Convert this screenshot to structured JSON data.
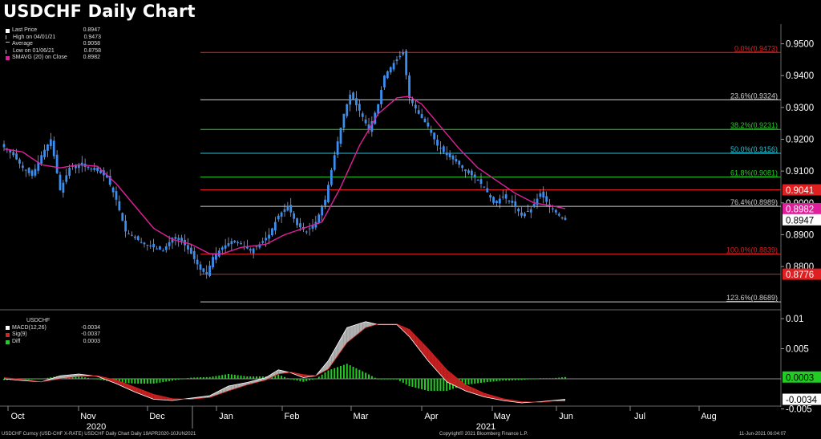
{
  "title": "USDCHF Daily Chart",
  "legend_top": {
    "rows": [
      {
        "label": "Last Price",
        "value": "0.8947",
        "color": "#ffffff",
        "marker": "box"
      },
      {
        "label": "High on 04/01/21",
        "value": "0.9473",
        "color": "#bbbbbb",
        "marker": "tick"
      },
      {
        "label": "Average",
        "value": "0.9058",
        "color": "#bbbbbb",
        "marker": "dash"
      },
      {
        "label": "Low on 01/06/21",
        "value": "0.8758",
        "color": "#bbbbbb",
        "marker": "tick"
      },
      {
        "label": "SMAVG (20)  on Close",
        "value": "0.8982",
        "color": "#e0209a",
        "marker": "box"
      }
    ]
  },
  "legend_bottom": {
    "header": "USDCHF",
    "rows": [
      {
        "label": "MACD(12,26)",
        "value": "-0.0034",
        "color": "#ffffff"
      },
      {
        "label": "Sig(9)",
        "value": "-0.0037",
        "color": "#e02020"
      },
      {
        "label": "Diff",
        "value": "0.0003",
        "color": "#22cc22"
      }
    ]
  },
  "footer": {
    "left": "USDCHF Curncy (USD-CHF X-RATE) USDCHF Daily Chart  Daily 19APR2020-10JUN2021",
    "center": "Copyright© 2021 Bloomberg Finance L.P.",
    "right": "11-Jun-2021 06:04:07"
  },
  "colors": {
    "candle": "#3a8ef0",
    "sma": "#e0209a",
    "fib_red": "#e02020",
    "fib_white": "#cccccc",
    "fib_green": "#22cc22",
    "fib_cyan": "#22c4d8",
    "diff": "#22cc22",
    "macd_fill": "#b0b0b0",
    "sig_fill": "#c02020"
  },
  "chart_data": {
    "type": "candlestick",
    "title": "USDCHF Daily Chart",
    "x_axis": {
      "months": [
        "Oct",
        "Nov",
        "Dec",
        "Jan",
        "Feb",
        "Mar",
        "Apr",
        "May",
        "Jun",
        "Jul",
        "Aug"
      ],
      "years": [
        "2020",
        "2021"
      ]
    },
    "y_axis_main": {
      "ticks": [
        "0.9500",
        "0.9400",
        "0.9300",
        "0.9200",
        "0.9100",
        "0.9000",
        "0.8900",
        "0.8800"
      ],
      "range": [
        0.8664,
        0.9562
      ]
    },
    "y_axis_macd": {
      "ticks": [
        "0.01",
        "0.005",
        "-0.005"
      ],
      "range": [
        -0.0044,
        0.0112
      ]
    },
    "fibonacci": [
      {
        "label": "0.0%(0.9473)",
        "value": 0.9473,
        "color_key": "fib_red",
        "tag": null
      },
      {
        "label": "23.6%(0.9324)",
        "value": 0.9324,
        "color_key": "fib_white",
        "tag": null
      },
      {
        "label": "38.2%(0.9231)",
        "value": 0.9231,
        "color_key": "fib_green",
        "tag": null
      },
      {
        "label": "50.0%(0.9156)",
        "value": 0.9156,
        "color_key": "fib_cyan",
        "tag": null
      },
      {
        "label": "61.8%(0.9081)",
        "value": 0.9081,
        "color_key": "fib_green",
        "tag": null
      },
      {
        "label": "",
        "value": 0.9041,
        "color_key": "fib_red",
        "tag": "0.9041"
      },
      {
        "label": "76.4%(0.8989)",
        "value": 0.8989,
        "color_key": "fib_white",
        "tag": null
      },
      {
        "label": "100.0%(0.8839)",
        "value": 0.8839,
        "color_key": "fib_red",
        "tag": null
      },
      {
        "label": "",
        "value": 0.8776,
        "color_key": "fib_red",
        "tag": "0.8776"
      },
      {
        "label": "123.6%(0.8689)",
        "value": 0.8689,
        "color_key": "fib_white",
        "tag": null
      }
    ],
    "price_tags": [
      {
        "value": 0.8982,
        "text": "0.8982",
        "bg": "#e0209a",
        "fg": "#ffffff"
      },
      {
        "value": 0.8947,
        "text": "0.8947",
        "bg": "#ffffff",
        "fg": "#000000"
      }
    ],
    "macd_tags": [
      {
        "value": 0.0003,
        "text": "0.0003",
        "bg": "#22cc22",
        "fg": "#000000"
      },
      {
        "value": -0.0034,
        "text": "-0.0034",
        "bg": "#ffffff",
        "fg": "#000000"
      }
    ],
    "close_anchors": [
      [
        0,
        0.9175
      ],
      [
        3,
        0.915
      ],
      [
        6,
        0.911
      ],
      [
        9,
        0.9085
      ],
      [
        12,
        0.915
      ],
      [
        15,
        0.92
      ],
      [
        18,
        0.904
      ],
      [
        21,
        0.911
      ],
      [
        24,
        0.912
      ],
      [
        27,
        0.911
      ],
      [
        30,
        0.91
      ],
      [
        33,
        0.908
      ],
      [
        36,
        0.901
      ],
      [
        39,
        0.891
      ],
      [
        42,
        0.889
      ],
      [
        45,
        0.887
      ],
      [
        48,
        0.886
      ],
      [
        51,
        0.885
      ],
      [
        54,
        0.889
      ],
      [
        57,
        0.888
      ],
      [
        60,
        0.884
      ],
      [
        63,
        0.879
      ],
      [
        65,
        0.8776
      ],
      [
        67,
        0.883
      ],
      [
        70,
        0.886
      ],
      [
        73,
        0.888
      ],
      [
        76,
        0.887
      ],
      [
        79,
        0.885
      ],
      [
        82,
        0.887
      ],
      [
        85,
        0.89
      ],
      [
        88,
        0.896
      ],
      [
        91,
        0.899
      ],
      [
        94,
        0.893
      ],
      [
        97,
        0.891
      ],
      [
        100,
        0.894
      ],
      [
        103,
        0.901
      ],
      [
        106,
        0.915
      ],
      [
        109,
        0.928
      ],
      [
        111,
        0.934
      ],
      [
        114,
        0.929
      ],
      [
        117,
        0.923
      ],
      [
        120,
        0.931
      ],
      [
        122,
        0.94
      ],
      [
        125,
        0.944
      ],
      [
        128,
        0.9473
      ],
      [
        130,
        0.933
      ],
      [
        133,
        0.928
      ],
      [
        136,
        0.924
      ],
      [
        139,
        0.918
      ],
      [
        142,
        0.915
      ],
      [
        145,
        0.913
      ],
      [
        148,
        0.91
      ],
      [
        151,
        0.908
      ],
      [
        154,
        0.905
      ],
      [
        157,
        0.9
      ],
      [
        160,
        0.902
      ],
      [
        163,
        0.9
      ],
      [
        166,
        0.896
      ],
      [
        169,
        0.898
      ],
      [
        172,
        0.903
      ],
      [
        175,
        0.899
      ],
      [
        178,
        0.896
      ],
      [
        180,
        0.8947
      ]
    ],
    "sma20_anchors": [
      [
        0,
        0.917
      ],
      [
        6,
        0.916
      ],
      [
        12,
        0.912
      ],
      [
        18,
        0.911
      ],
      [
        24,
        0.912
      ],
      [
        30,
        0.9115
      ],
      [
        36,
        0.906
      ],
      [
        42,
        0.899
      ],
      [
        48,
        0.892
      ],
      [
        54,
        0.8885
      ],
      [
        60,
        0.887
      ],
      [
        66,
        0.884
      ],
      [
        70,
        0.884
      ],
      [
        76,
        0.886
      ],
      [
        84,
        0.887
      ],
      [
        90,
        0.89
      ],
      [
        96,
        0.892
      ],
      [
        102,
        0.894
      ],
      [
        108,
        0.905
      ],
      [
        114,
        0.918
      ],
      [
        120,
        0.928
      ],
      [
        126,
        0.933
      ],
      [
        130,
        0.9335
      ],
      [
        134,
        0.931
      ],
      [
        140,
        0.924
      ],
      [
        146,
        0.917
      ],
      [
        152,
        0.911
      ],
      [
        158,
        0.907
      ],
      [
        164,
        0.903
      ],
      [
        170,
        0.9
      ],
      [
        176,
        0.899
      ],
      [
        180,
        0.8982
      ]
    ],
    "macd_anchors": [
      [
        0,
        0.0
      ],
      [
        6,
        -0.0003
      ],
      [
        12,
        -0.0005
      ],
      [
        18,
        0.0005
      ],
      [
        24,
        0.0008
      ],
      [
        30,
        0.0004
      ],
      [
        36,
        -0.0008
      ],
      [
        42,
        -0.0022
      ],
      [
        48,
        -0.0034
      ],
      [
        54,
        -0.0036
      ],
      [
        60,
        -0.0032
      ],
      [
        66,
        -0.0028
      ],
      [
        72,
        -0.0012
      ],
      [
        78,
        -0.0006
      ],
      [
        84,
        0.0002
      ],
      [
        88,
        0.0015
      ],
      [
        92,
        0.001
      ],
      [
        96,
        0.0002
      ],
      [
        100,
        0.0005
      ],
      [
        104,
        0.003
      ],
      [
        110,
        0.0085
      ],
      [
        116,
        0.0095
      ],
      [
        120,
        0.009
      ],
      [
        126,
        0.009
      ],
      [
        130,
        0.007
      ],
      [
        136,
        0.003
      ],
      [
        142,
        -0.0005
      ],
      [
        148,
        -0.002
      ],
      [
        154,
        -0.003
      ],
      [
        160,
        -0.0036
      ],
      [
        166,
        -0.004
      ],
      [
        172,
        -0.0038
      ],
      [
        176,
        -0.0036
      ],
      [
        180,
        -0.0034
      ]
    ],
    "signal_anchors": [
      [
        0,
        0.0002
      ],
      [
        6,
        -0.0001
      ],
      [
        12,
        -0.0005
      ],
      [
        18,
        0.0
      ],
      [
        24,
        0.0004
      ],
      [
        30,
        0.0005
      ],
      [
        36,
        -0.0002
      ],
      [
        42,
        -0.0014
      ],
      [
        48,
        -0.0026
      ],
      [
        54,
        -0.0033
      ],
      [
        60,
        -0.0034
      ],
      [
        66,
        -0.0031
      ],
      [
        72,
        -0.002
      ],
      [
        78,
        -0.001
      ],
      [
        84,
        -0.0002
      ],
      [
        88,
        0.0008
      ],
      [
        92,
        0.0011
      ],
      [
        96,
        0.0007
      ],
      [
        100,
        0.0005
      ],
      [
        104,
        0.0016
      ],
      [
        110,
        0.006
      ],
      [
        116,
        0.0085
      ],
      [
        120,
        0.0091
      ],
      [
        126,
        0.0091
      ],
      [
        130,
        0.0082
      ],
      [
        136,
        0.005
      ],
      [
        142,
        0.0015
      ],
      [
        148,
        -0.001
      ],
      [
        154,
        -0.0024
      ],
      [
        160,
        -0.0033
      ],
      [
        166,
        -0.0038
      ],
      [
        172,
        -0.0039
      ],
      [
        176,
        -0.0037
      ],
      [
        180,
        -0.0037
      ]
    ],
    "n_days": 181
  }
}
